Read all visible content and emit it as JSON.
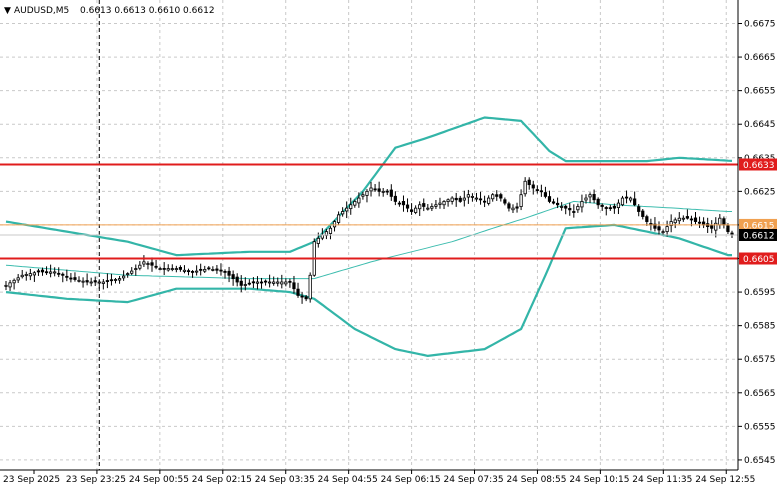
{
  "header": {
    "symbol": "AUDUSD,M5",
    "ohlc": "0.6613 0.6613 0.6610 0.6612"
  },
  "chart_data": {
    "type": "line",
    "title": "",
    "ylim": [
      0.6542,
      0.6682
    ],
    "y_ticks": [
      "0.6675",
      "0.6665",
      "0.6655",
      "0.6645",
      "0.6635",
      "0.6625",
      "0.6615",
      "0.6605",
      "0.6595",
      "0.6585",
      "0.6575",
      "0.6565",
      "0.6555",
      "0.6545"
    ],
    "x_ticks": [
      "23 Sep 2025",
      "23 Sep 23:25",
      "24 Sep 00:55",
      "24 Sep 02:15",
      "24 Sep 03:35",
      "24 Sep 04:55",
      "24 Sep 06:15",
      "24 Sep 07:35",
      "24 Sep 08:55",
      "24 Sep 10:15",
      "24 Sep 11:35",
      "24 Sep 12:55"
    ],
    "x_count": 180,
    "grid": true,
    "levels": [
      {
        "label": "0.6633",
        "value": 0.6633,
        "color": "#e01c1c",
        "kind": "resistance"
      },
      {
        "label": "0.6615",
        "value": 0.6615,
        "color": "#f0a050",
        "kind": "price-line"
      },
      {
        "label": "0.6612",
        "value": 0.6612,
        "color": "#c8c8c8",
        "kind": "current"
      },
      {
        "label": "0.6605",
        "value": 0.6605,
        "color": "#e01c1c",
        "kind": "support"
      }
    ],
    "vline_x": 23,
    "bands": {
      "upper": [
        [
          0,
          0.6616
        ],
        [
          15,
          0.6613
        ],
        [
          30,
          0.661
        ],
        [
          42,
          0.6606
        ],
        [
          60,
          0.6607
        ],
        [
          70,
          0.6607
        ],
        [
          76,
          0.661
        ],
        [
          88,
          0.6625
        ],
        [
          96,
          0.6638
        ],
        [
          104,
          0.6641
        ],
        [
          118,
          0.6647
        ],
        [
          127,
          0.6646
        ],
        [
          134,
          0.6637
        ],
        [
          138,
          0.6634
        ],
        [
          150,
          0.6634
        ],
        [
          158,
          0.6634
        ],
        [
          166,
          0.6635
        ],
        [
          180,
          0.6634
        ]
      ],
      "middle": [
        [
          0,
          0.6603
        ],
        [
          30,
          0.66
        ],
        [
          60,
          0.6599
        ],
        [
          76,
          0.6599
        ],
        [
          90,
          0.6604
        ],
        [
          110,
          0.661
        ],
        [
          120,
          0.6614
        ],
        [
          128,
          0.6617
        ],
        [
          140,
          0.6622
        ],
        [
          150,
          0.6621
        ],
        [
          165,
          0.662
        ],
        [
          178,
          0.6619
        ]
      ],
      "lower": [
        [
          0,
          0.6595
        ],
        [
          15,
          0.6593
        ],
        [
          30,
          0.6592
        ],
        [
          42,
          0.6596
        ],
        [
          60,
          0.6596
        ],
        [
          70,
          0.6595
        ],
        [
          76,
          0.6593
        ],
        [
          86,
          0.6584
        ],
        [
          96,
          0.6578
        ],
        [
          104,
          0.6576
        ],
        [
          118,
          0.6578
        ],
        [
          127,
          0.6584
        ],
        [
          133,
          0.66
        ],
        [
          138,
          0.6614
        ],
        [
          150,
          0.6615
        ],
        [
          158,
          0.6613
        ],
        [
          166,
          0.6611
        ],
        [
          178,
          0.6606
        ]
      ]
    },
    "candles_close": [
      [
        0,
        0.6597
      ],
      [
        4,
        0.66
      ],
      [
        8,
        0.6601
      ],
      [
        12,
        0.6601
      ],
      [
        16,
        0.6599
      ],
      [
        20,
        0.6598
      ],
      [
        24,
        0.6598
      ],
      [
        28,
        0.6599
      ],
      [
        32,
        0.6602
      ],
      [
        34,
        0.6604
      ],
      [
        38,
        0.6602
      ],
      [
        42,
        0.6602
      ],
      [
        46,
        0.6601
      ],
      [
        50,
        0.6602
      ],
      [
        54,
        0.6601
      ],
      [
        58,
        0.6597
      ],
      [
        62,
        0.6598
      ],
      [
        66,
        0.6598
      ],
      [
        70,
        0.6598
      ],
      [
        72,
        0.6594
      ],
      [
        74,
        0.6593
      ],
      [
        75,
        0.66
      ],
      [
        76,
        0.661
      ],
      [
        78,
        0.6612
      ],
      [
        80,
        0.6614
      ],
      [
        82,
        0.6618
      ],
      [
        84,
        0.662
      ],
      [
        86,
        0.6622
      ],
      [
        88,
        0.6624
      ],
      [
        90,
        0.6626
      ],
      [
        92,
        0.6625
      ],
      [
        94,
        0.6625
      ],
      [
        96,
        0.6622
      ],
      [
        98,
        0.6621
      ],
      [
        100,
        0.6619
      ],
      [
        102,
        0.6621
      ],
      [
        104,
        0.662
      ],
      [
        106,
        0.6621
      ],
      [
        108,
        0.6622
      ],
      [
        110,
        0.6623
      ],
      [
        112,
        0.6622
      ],
      [
        114,
        0.6624
      ],
      [
        116,
        0.6623
      ],
      [
        118,
        0.6622
      ],
      [
        120,
        0.6624
      ],
      [
        122,
        0.6623
      ],
      [
        124,
        0.662
      ],
      [
        126,
        0.662
      ],
      [
        128,
        0.6628
      ],
      [
        130,
        0.6626
      ],
      [
        132,
        0.6625
      ],
      [
        134,
        0.6622
      ],
      [
        136,
        0.6621
      ],
      [
        138,
        0.662
      ],
      [
        140,
        0.6619
      ],
      [
        142,
        0.6622
      ],
      [
        144,
        0.6624
      ],
      [
        146,
        0.6621
      ],
      [
        148,
        0.662
      ],
      [
        150,
        0.662
      ],
      [
        152,
        0.6623
      ],
      [
        154,
        0.6623
      ],
      [
        156,
        0.6619
      ],
      [
        158,
        0.6616
      ],
      [
        160,
        0.6614
      ],
      [
        162,
        0.6613
      ],
      [
        164,
        0.6616
      ],
      [
        166,
        0.6617
      ],
      [
        168,
        0.6617
      ],
      [
        170,
        0.6616
      ],
      [
        172,
        0.6615
      ],
      [
        174,
        0.6614
      ],
      [
        176,
        0.6617
      ],
      [
        178,
        0.6613
      ],
      [
        179,
        0.6612
      ]
    ]
  },
  "colors": {
    "background": "#ffffff",
    "grid": "#c9c9c9",
    "band": "#33b5a8",
    "middle": "#3cbcae",
    "candle": "#000000",
    "resistance": "#e01c1c",
    "support": "#e01c1c",
    "price_line": "#f0a050",
    "current_tag": "#000000"
  }
}
